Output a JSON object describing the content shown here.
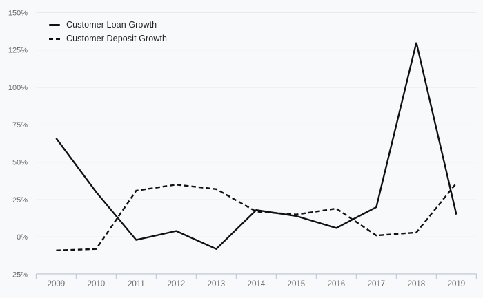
{
  "chart_data": {
    "type": "line",
    "title": "",
    "xlabel": "",
    "ylabel": "",
    "categories": [
      "2009",
      "2010",
      "2011",
      "2012",
      "2013",
      "2014",
      "2015",
      "2016",
      "2017",
      "2018",
      "2019"
    ],
    "series": [
      {
        "name": "Customer Loan Growth",
        "style": "solid",
        "values": [
          66,
          30,
          -2,
          4,
          -8,
          18,
          14,
          6,
          20,
          130,
          15
        ]
      },
      {
        "name": "Customer Deposit Growth",
        "style": "dashed",
        "values": [
          -9,
          -8,
          31,
          35,
          32,
          17,
          15,
          19,
          1,
          3,
          36
        ]
      }
    ],
    "ylim": [
      -25,
      150
    ],
    "ytick_step": 25,
    "yticks": [
      150,
      125,
      100,
      75,
      50,
      25,
      0,
      -25
    ],
    "ytick_labels": [
      "150%",
      "125%",
      "100%",
      "75%",
      "50%",
      "25%",
      "0%",
      "-25%"
    ],
    "unit": "%",
    "grid": "horizontal",
    "legend_position": "top-left"
  },
  "colors": {
    "background": "#f8f9fa",
    "gridline": "#e9eaed",
    "axis_line": "#c2cbdc",
    "tick_text": "#66696e",
    "legend_text": "#1f2023",
    "series_line": "#111111"
  }
}
